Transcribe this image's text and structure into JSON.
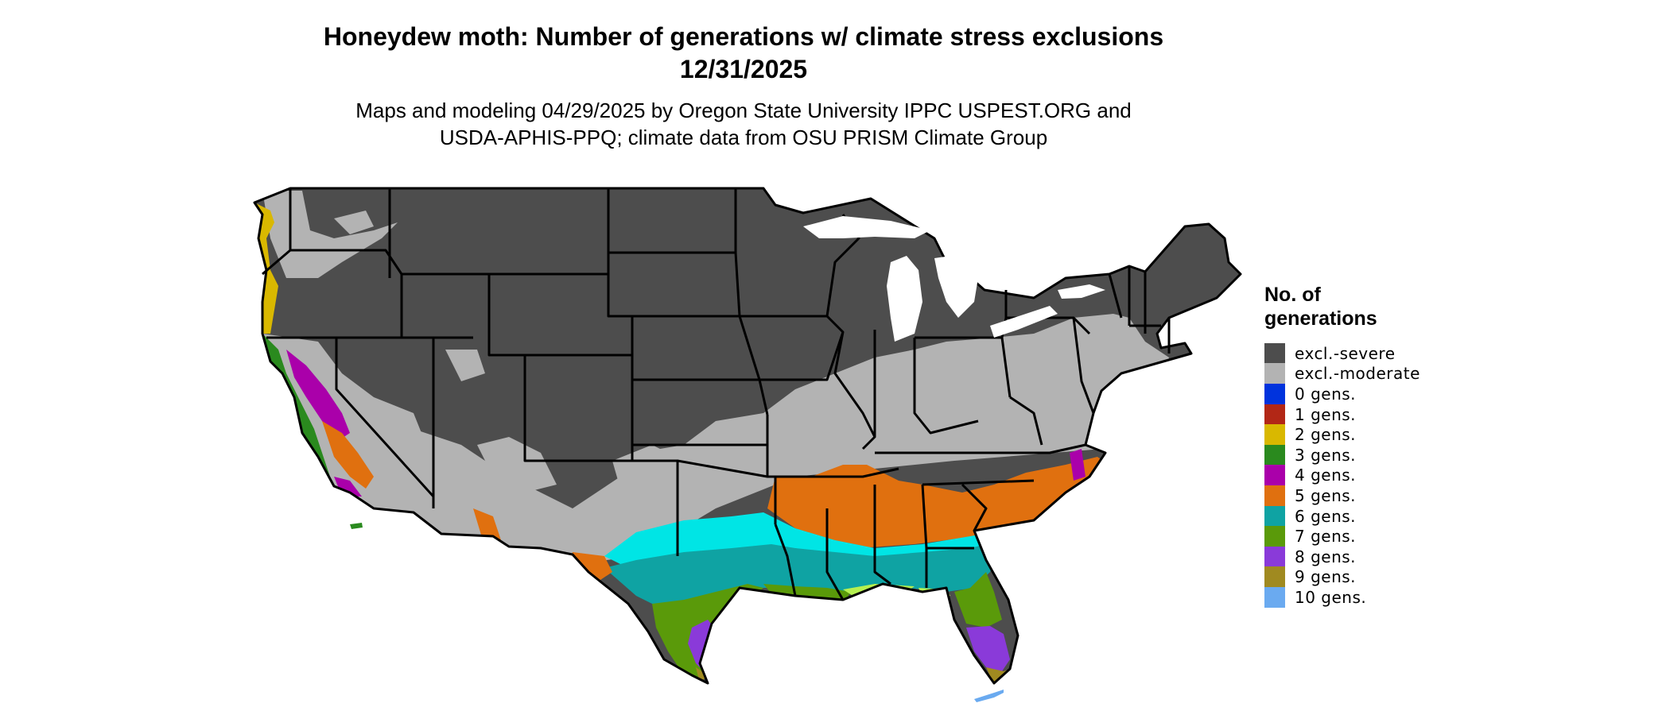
{
  "header": {
    "title_line1": "Honeydew moth: Number of generations w/ climate stress exclusions",
    "title_line2": "12/31/2025",
    "subtitle_line1": "Maps and modeling 04/29/2025 by Oregon State University IPPC USPEST.ORG and",
    "subtitle_line2": "USDA-APHIS-PPQ; climate data from OSU PRISM Climate Group"
  },
  "legend": {
    "title_line1": "No. of",
    "title_line2": "generations",
    "items": [
      {
        "label": "excl.-severe",
        "color": "#4d4d4d"
      },
      {
        "label": "excl.-moderate",
        "color": "#b3b3b3"
      },
      {
        "label": "0 gens.",
        "color": "#0033dd"
      },
      {
        "label": "1 gens.",
        "color": "#b22716"
      },
      {
        "label": "2 gens.",
        "color": "#d9b800"
      },
      {
        "label": "3 gens.",
        "color": "#2a8a1e"
      },
      {
        "label": "4 gens.",
        "color": "#aa00aa"
      },
      {
        "label": "5 gens.",
        "color": "#e0700f"
      },
      {
        "label": "6 gens.",
        "color": "#0fa3a3"
      },
      {
        "label": "7 gens.",
        "color": "#5a9a0a"
      },
      {
        "label": "8 gens.",
        "color": "#8a3ad9"
      },
      {
        "label": "9 gens.",
        "color": "#a08a20"
      },
      {
        "label": "10 gens.",
        "color": "#6aaaf0"
      }
    ]
  },
  "map_colors": {
    "state_border": "#000000",
    "cyan_band": "#00e5e5",
    "lime": "#b5f050"
  }
}
